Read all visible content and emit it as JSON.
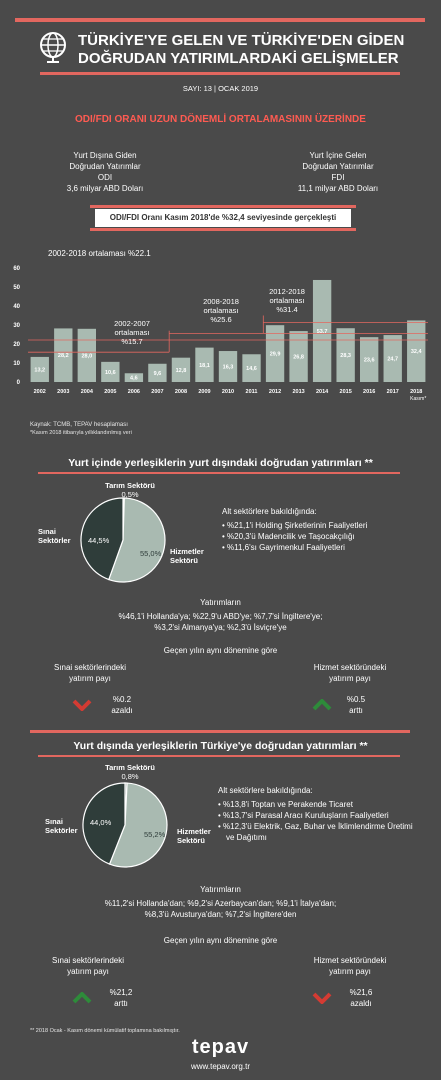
{
  "header": {
    "title_line1": "TÜRKİYE'YE GELEN VE TÜRKİYE'DEN GİDEN",
    "title_line2": "DOĞRUDAN YATIRIMLARDAKİ GELİŞMELER",
    "issue": "SAYI: 13 | OCAK 2019"
  },
  "summary": {
    "headline": "ODI/FDI ORANI UZUN DÖNEMLİ ORTALAMASININ ÜZERİNDE",
    "odi_line1": "Yurt Dışına Giden",
    "odi_line2": "Doğrudan Yatırımlar",
    "odi_line3": "ODI",
    "odi_value": "3,6 milyar ABD Doları",
    "fdi_line1": "Yurt İçine Gelen",
    "fdi_line2": "Doğrudan Yatırımlar",
    "fdi_line3": "FDI",
    "fdi_value": "11,1 milyar ABD Doları",
    "ratio_text": "ODI/FDI Oranı Kasım 2018'de %32,4 seviyesinde gerçekleşti"
  },
  "chart_data": {
    "type": "bar",
    "categories": [
      "2002",
      "2003",
      "2004",
      "2005",
      "2006",
      "2007",
      "2008",
      "2009",
      "2010",
      "2011",
      "2012",
      "2013",
      "2014",
      "2015",
      "2016",
      "2017",
      "2018"
    ],
    "values": [
      13.2,
      28.2,
      28.0,
      10.6,
      4.6,
      9.6,
      12.8,
      18.1,
      16.3,
      14.6,
      29.9,
      26.8,
      53.7,
      28.3,
      23.6,
      24.7,
      32.4
    ],
    "value_labels": [
      "13,2",
      "28,2",
      "28,0",
      "10,6",
      "4,6",
      "9,6",
      "12,8",
      "18,1",
      "16,3",
      "14,6",
      "29,9",
      "26,8",
      "53,7",
      "28,3",
      "23,6",
      "24,7",
      "32,4"
    ],
    "last_category_note": "Kasım*",
    "yticks": [
      "0",
      "10",
      "20",
      "30",
      "40",
      "50",
      "60"
    ],
    "ylim": [
      0,
      60
    ],
    "annotations": {
      "avg_2002_2018": "2002-2018 ortalaması %22.1",
      "avg_2002_2007_l1": "2002-2007",
      "avg_2002_2007_l2": "ortalaması",
      "avg_2002_2007_l3": "%15.7",
      "avg_2008_2018_l1": "2008-2018",
      "avg_2008_2018_l2": "ortalaması",
      "avg_2008_2018_l3": "%25.6",
      "avg_2012_2018_l1": "2012-2018",
      "avg_2012_2018_l2": "ortalaması",
      "avg_2012_2018_l3": "%31.4"
    },
    "averages": [
      {
        "from": "2002",
        "to": "2018",
        "value": 22.1
      },
      {
        "from": "2002",
        "to": "2007",
        "value": 15.7
      },
      {
        "from": "2008",
        "to": "2018",
        "value": 25.6
      },
      {
        "from": "2012",
        "to": "2018",
        "value": 31.4
      }
    ],
    "source1": "Kaynak: TCMB, TEPAV hesaplaması",
    "source2": "*Kasım 2018 itibarıyla yıllıklandırılmış veri",
    "colors": {
      "bar": "#a9bab1",
      "line": "#e2675f"
    }
  },
  "inward": {
    "heading": "Yurt içinde yerleşiklerin yurt dışındaki doğrudan yatırımları **",
    "pie": [
      {
        "label": "Tarım Sektörü",
        "value_label": "0,5%",
        "value": 0.5,
        "color": "#9aa3a0"
      },
      {
        "label": "Hizmetler Sektörü",
        "label1": "Hizmetler",
        "label2": "Sektörü",
        "value_label": "55,0%",
        "value": 55.0,
        "color": "#a9bab1"
      },
      {
        "label": "Sınai Sektörler",
        "label1": "Sınai",
        "label2": "Sektörler",
        "value_label": "44,5%",
        "value": 44.5,
        "color": "#2f3d3a"
      }
    ],
    "sub_title": "Alt sektörlere bakıldığında:",
    "sub_items": [
      "%21,1'i Holding Şirketlerinin Faaliyetleri",
      "%20,3'ü Madencilik ve Taşocakçılığı",
      "%11,6'sı Gayrimenkul Faaliyetleri"
    ],
    "inv_title": "Yatırımların",
    "inv_l1": "%46,1'i Hollanda'ya; %22,9'u ABD'ye; %7,7'si İngiltere'ye;",
    "inv_l2": "%3,2'si Almanya'ya; %2,3'ü İsviçre'ye",
    "yoy_title": "Geçen yılın aynı dönemine göre",
    "left_l1": "Sınai sektörlerindeki",
    "left_l2": "yatırım payı",
    "left_value": "%0.2",
    "left_change": "azaldı",
    "right_l1": "Hizmet sektöründeki",
    "right_l2": "yatırım payı",
    "right_value": "%0.5",
    "right_change": "arttı"
  },
  "outward": {
    "heading": "Yurt dışında yerleşiklerin Türkiye'ye doğrudan yatırımları **",
    "pie": [
      {
        "label": "Tarım Sektörü",
        "value_label": "0,8%",
        "value": 0.8,
        "color": "#9aa3a0"
      },
      {
        "label": "Hizmetler Sektörü",
        "label1": "Hizmetler",
        "label2": "Sektörü",
        "value_label": "55,2%",
        "value": 55.2,
        "color": "#a9bab1"
      },
      {
        "label": "Sınai Sektörler",
        "label1": "Sınai",
        "label2": "Sektörler",
        "value_label": "44,0%",
        "value": 44.0,
        "color": "#2f3d3a"
      }
    ],
    "sub_title": "Alt sektörlere bakıldığında:",
    "sub_items": [
      "%13,8'i Toptan ve Perakende Ticaret",
      "%13,7'si Parasal Aracı Kuruluşların Faaliyetleri",
      "%12,3'ü Elektrik, Gaz, Buhar ve İklimlendirme Üretimi ve Dağıtımı"
    ],
    "inv_title": "Yatırımların",
    "inv_l1": "%11,2'si Hollanda'dan; %9,2'si Azerbaycan'dan; %9,1'i İtalya'dan;",
    "inv_l2": "%8,3'ü Avusturya'dan; %7,2'si İngiltere'den",
    "yoy_title": "Geçen yılın aynı dönemine göre",
    "left_l1": "Sınai sektörlerindeki",
    "left_l2": "yatırım payı",
    "left_value": "%21,2",
    "left_change": "arttı",
    "right_l1": "Hizmet sektöründeki",
    "right_l2": "yatırım payı",
    "right_value": "%21,6",
    "right_change": "azaldı"
  },
  "footer": {
    "note": "** 2018 Ocak - Kasım dönemi kümülatif toplamına bakılmıştır.",
    "logo": "tepav",
    "url": "www.tepav.org.tr"
  }
}
